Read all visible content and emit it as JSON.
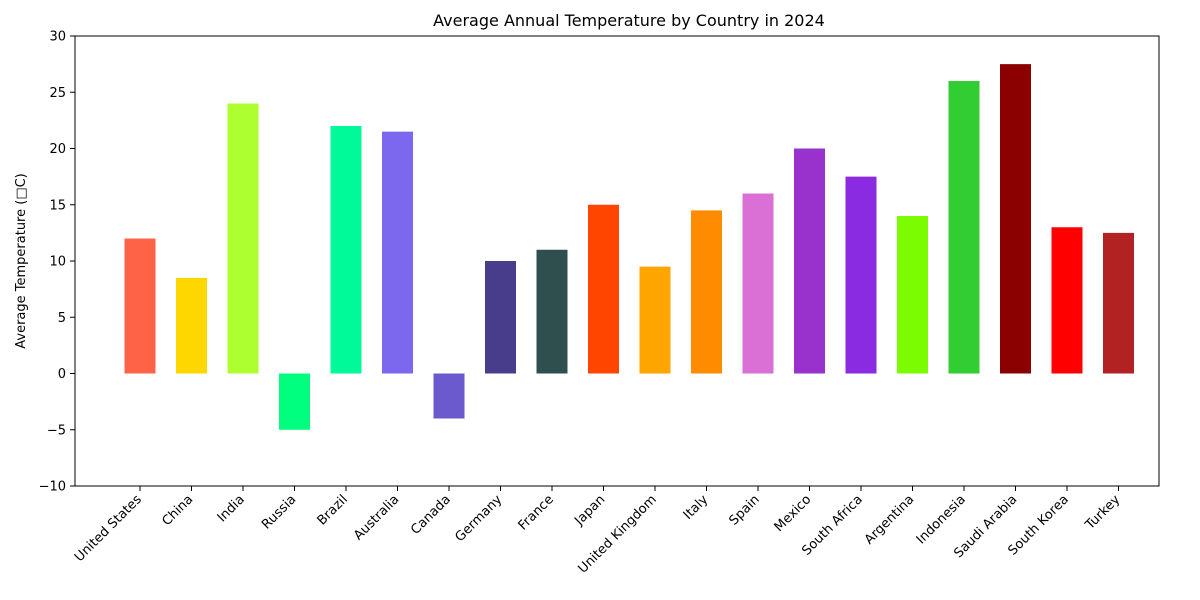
{
  "chart_data": {
    "type": "bar",
    "title": "Average Annual Temperature by Country in 2024",
    "xlabel": "",
    "ylabel": "Average Temperature (□C)",
    "ylim": [
      -10,
      30
    ],
    "yticks": [
      -10,
      -5,
      0,
      5,
      10,
      15,
      20,
      25,
      30
    ],
    "grid": false,
    "categories": [
      "United States",
      "China",
      "India",
      "Russia",
      "Brazil",
      "Australia",
      "Canada",
      "Germany",
      "France",
      "Japan",
      "United Kingdom",
      "Italy",
      "Spain",
      "Mexico",
      "South Africa",
      "Argentina",
      "Indonesia",
      "Saudi Arabia",
      "South Korea",
      "Turkey"
    ],
    "values": [
      12,
      8.5,
      24,
      -5,
      22,
      21.5,
      -4,
      10,
      11,
      15,
      9.5,
      14.5,
      16,
      20,
      17.5,
      14,
      26,
      27.5,
      13,
      12.5
    ],
    "colors": [
      "#ff6347",
      "#ffd700",
      "#adff2f",
      "#00ff7f",
      "#00fa9a",
      "#7b68ee",
      "#6a5acd",
      "#483d8b",
      "#2f4f4f",
      "#ff4500",
      "#ffa500",
      "#ff8c00",
      "#da70d6",
      "#9932cc",
      "#8a2be2",
      "#7cfc00",
      "#32cd32",
      "#8b0000",
      "#ff0000",
      "#b22222"
    ]
  }
}
